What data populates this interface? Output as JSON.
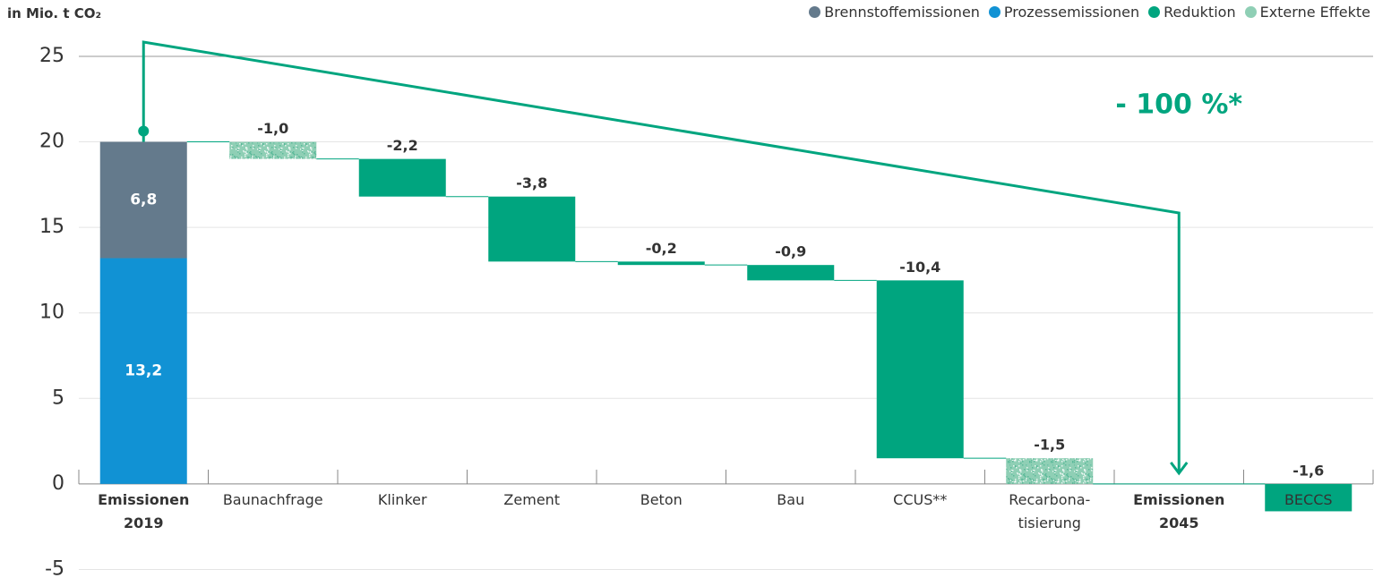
{
  "chart_data": {
    "type": "waterfall",
    "ylabel": "in Mio. t CO₂",
    "annotation": "- 100 %*",
    "categories": [
      "Emissionen 2019",
      "Baunachfrage",
      "Klinker",
      "Zement",
      "Beton",
      "Bau",
      "CCUS**",
      "Recarbona-tisierung",
      "Emissionen 2045",
      "BECCS"
    ],
    "series": [
      {
        "name": "Brennstoffemissionen",
        "color": "#647a8c",
        "values": [
          6.8,
          null,
          null,
          null,
          null,
          null,
          null,
          null,
          null,
          null
        ],
        "value_labels": [
          "6,8",
          null,
          null,
          null,
          null,
          null,
          null,
          null,
          null,
          null
        ]
      },
      {
        "name": "Prozessemissionen",
        "color": "#1192d4",
        "values": [
          13.2,
          null,
          null,
          null,
          null,
          null,
          null,
          null,
          null,
          null
        ],
        "value_labels": [
          "13,2",
          null,
          null,
          null,
          null,
          null,
          null,
          null,
          null,
          null
        ]
      },
      {
        "name": "Reduktion",
        "color": "#00a57f",
        "values": [
          null,
          null,
          -2.2,
          -3.8,
          -0.2,
          -0.9,
          -10.4,
          null,
          null,
          -1.6
        ],
        "value_labels": [
          null,
          null,
          "-2,2",
          "-3,8",
          "-0,2",
          "-0,9",
          "-10,4",
          null,
          null,
          "-1,6"
        ]
      },
      {
        "name": "Externe Effekte",
        "color": "#8fcfb5",
        "pattern": "speckle",
        "values": [
          null,
          -1.0,
          null,
          null,
          null,
          null,
          null,
          -1.5,
          null,
          null
        ],
        "value_labels": [
          null,
          "-1,0",
          null,
          null,
          null,
          null,
          null,
          "-1,5",
          null,
          null
        ]
      }
    ],
    "ylim": [
      -5.5,
      26.2
    ],
    "yticks": [
      -5,
      0,
      5,
      10,
      15,
      20,
      25
    ],
    "grid": true
  }
}
